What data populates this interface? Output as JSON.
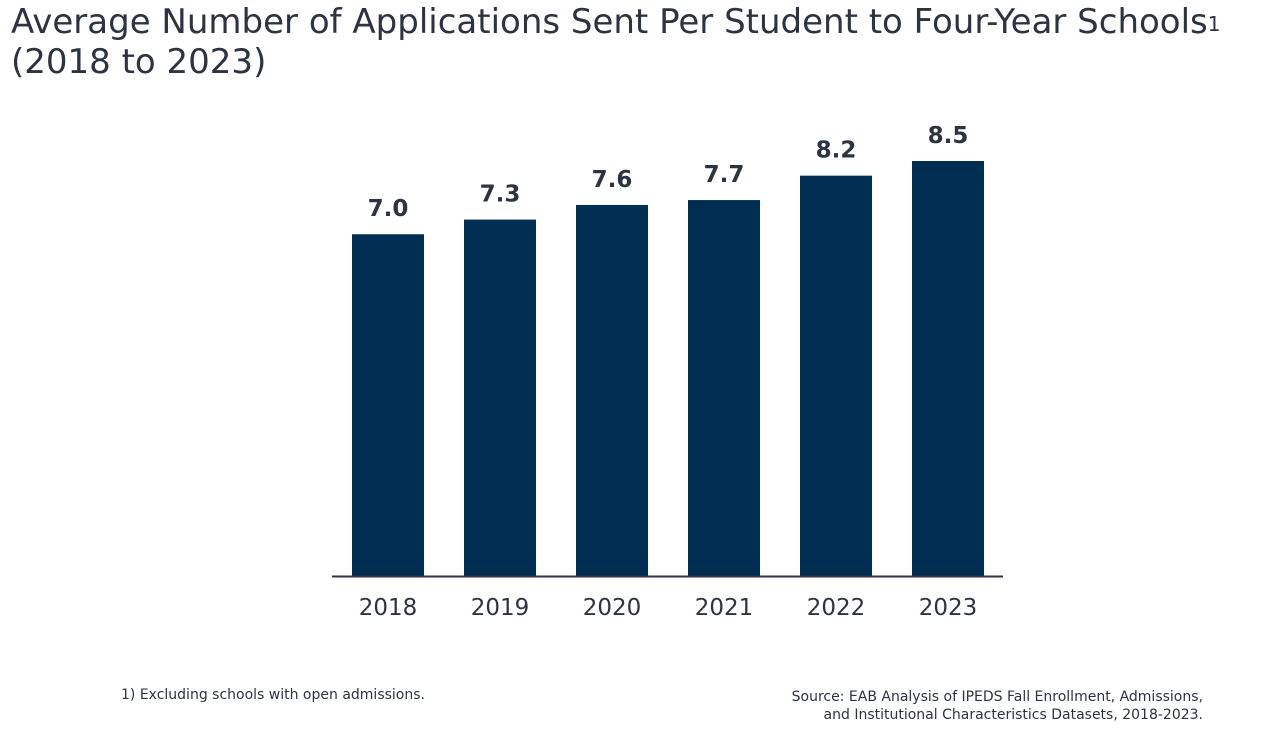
{
  "title": {
    "line1": "Average Number of Applications Sent Per Student to Four-Year Schools",
    "footnote_marker": "1",
    "line2": "(2018 to 2023)"
  },
  "chart_data": {
    "type": "bar",
    "categories": [
      "2018",
      "2019",
      "2020",
      "2021",
      "2022",
      "2023"
    ],
    "values": [
      7.0,
      7.3,
      7.6,
      7.7,
      8.2,
      8.5
    ],
    "data_labels": [
      "7.0",
      "7.3",
      "7.6",
      "7.7",
      "8.2",
      "8.5"
    ],
    "ylim": [
      0,
      9.5
    ],
    "grid": false,
    "legend": "none",
    "bar_color": "#002d52",
    "axis_color": "#2b3440"
  },
  "footnote": "1)  Excluding schools with open admissions.",
  "source": {
    "line1": "Source: EAB Analysis of IPEDS Fall Enrollment, Admissions,",
    "line2": "and Institutional Characteristics Datasets, 2018-2023."
  }
}
